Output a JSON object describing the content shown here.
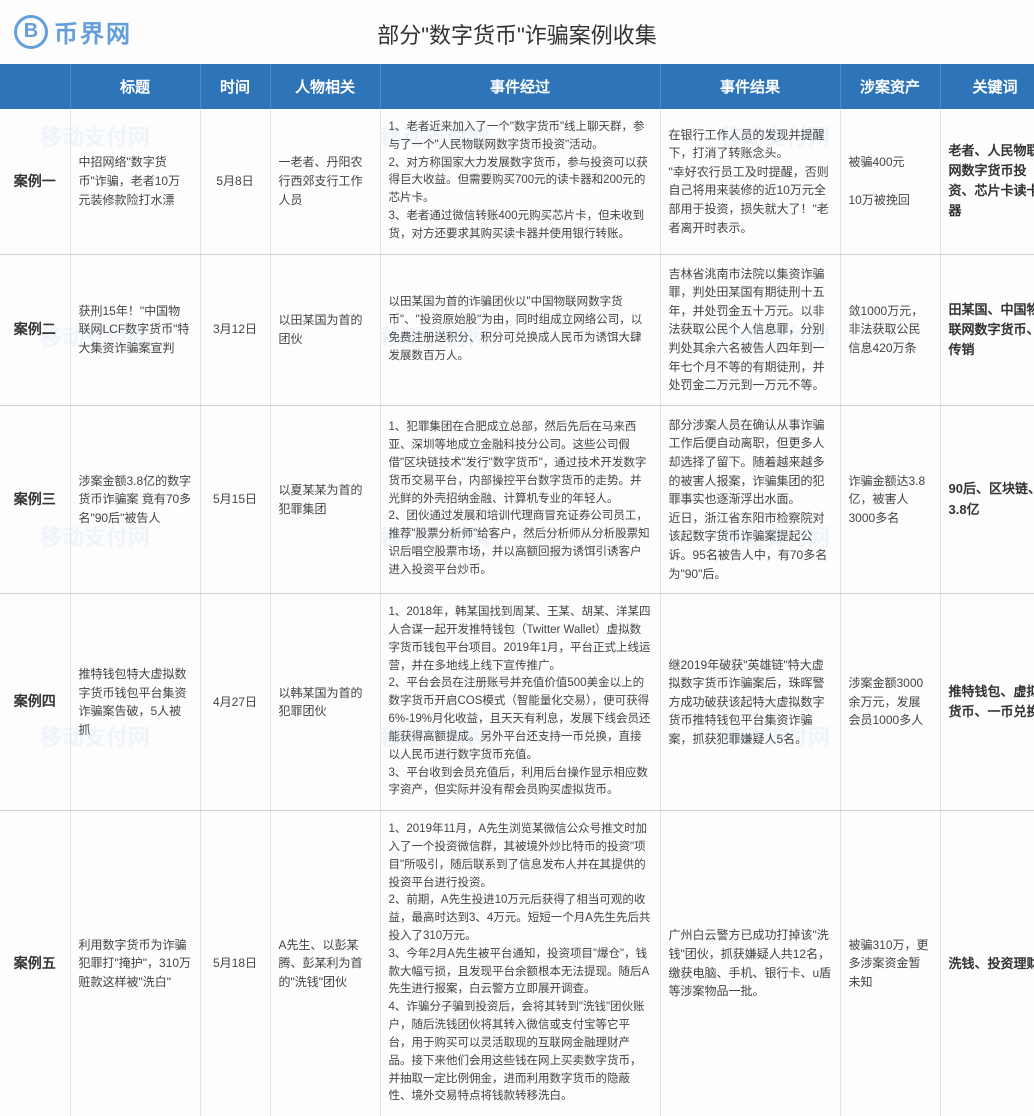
{
  "logo": {
    "glyph": "B",
    "text": "币界网"
  },
  "watermark_text": "移动支付网",
  "title": "部分\"数字货币\"诈骗案例收集",
  "columns": {
    "c0": "",
    "c1": "标题",
    "c2": "时间",
    "c3": "人物相关",
    "c4": "事件经过",
    "c5": "事件结果",
    "c6": "涉案资产",
    "c7": "关键词"
  },
  "rows": [
    {
      "case": "案例一",
      "title": "中招网络\"数字货币\"诈骗，老者10万元装修款险打水漂",
      "time": "5月8日",
      "person": "一老者、丹阳农行西郊支行工作人员",
      "process": "1、老者近来加入了一个\"数字货币\"线上聊天群，参与了一个\"人民物联网数字货币投资\"活动。\n2、对方称国家大力发展数字货币，参与投资可以获得巨大收益。但需要购买700元的读卡器和200元的芯片卡。\n3、老者通过微信转账400元购买芯片卡，但未收到货，对方还要求其购买读卡器并使用银行转账。",
      "result": "在银行工作人员的发现并提醒下，打消了转账念头。\n\"幸好农行员工及时提醒，否则自己将用来装修的近10万元全部用于投资，损失就大了！\"老者离开时表示。",
      "asset": "被骗400元\n\n10万被挽回",
      "keyword": "老者、人民物联网数字货币投资、芯片卡读卡器"
    },
    {
      "case": "案例二",
      "title": "获刑15年！\"中国物联网LCF数字货币\"特大集资诈骗案宣判",
      "time": "3月12日",
      "person": "以田某国为首的团伙",
      "process": "以田某国为首的诈骗团伙以\"中国物联网数字货币\"、\"投资原始股\"为由，同时组成立网络公司，以免费注册送积分、积分可兑换成人民币为诱饵大肆发展数百万人。",
      "result": "吉林省洮南市法院以集资诈骗罪，判处田某国有期徒刑十五年，并处罚金五十万元。以非法获取公民个人信息罪，分别判处其余六名被告人四年到一年七个月不等的有期徒刑，并处罚金二万元到一万元不等。",
      "asset": "敛1000万元，非法获取公民信息420万条",
      "keyword": "田某国、中国物联网数字货币、传销"
    },
    {
      "case": "案例三",
      "title": "涉案金额3.8亿的数字货币诈骗案 竟有70多名\"90后\"被告人",
      "time": "5月15日",
      "person": "以夏某某为首的犯罪集团",
      "process": "1、犯罪集团在合肥成立总部，然后先后在马来西亚、深圳等地成立金融科技分公司。这些公司假借\"区块链技术\"发行\"数字货币\"，通过技术开发数字货币交易平台，内部操控平台数字货币的走势。并光鲜的外壳招纳金融、计算机专业的年轻人。\n2、团伙通过发展和培训代理商冒充证券公司员工，推荐\"股票分析师\"给客户，然后分析师从分析股票知识后唱空股票市场，并以高额回报为诱饵引诱客户进入投资平台炒币。",
      "result": "部分涉案人员在确认从事诈骗工作后便自动离职，但更多人却选择了留下。随着越来越多的被害人报案，诈骗集团的犯罪事实也逐渐浮出水面。\n近日，浙江省东阳市检察院对该起数字货币诈骗案提起公诉。95名被告人中，有70多名为\"90\"后。",
      "asset": "诈骗金额达3.8亿，被害人3000多名",
      "keyword": "90后、区块链、3.8亿"
    },
    {
      "case": "案例四",
      "title": "推特钱包特大虚拟数字货币钱包平台集资诈骗案告破，5人被抓",
      "time": "4月27日",
      "person": "以韩某国为首的犯罪团伙",
      "process": "1、2018年，韩某国找到周某、王某、胡某、洋某四人合谋一起开发推特钱包（Twitter Wallet）虚拟数字货币钱包平台项目。2019年1月，平台正式上线运营，并在多地线上线下宣传推广。\n2、平台会员在注册账号并充值价值500美金以上的数字货币开启COS模式（智能量化交易），便可获得6%-19%月化收益，且天天有利息，发展下线会员还能获得高额提成。另外平台还支持一币兑换，直接以人民币进行数字货币充值。\n3、平台收到会员充值后，利用后台操作显示相应数字资产，但实际并没有帮会员购买虚拟货币。",
      "result": "继2019年破获\"英雄链\"特大虚拟数字货币诈骗案后，珠晖警方成功破获该起特大虚拟数字货币推特钱包平台集资诈骗案，抓获犯罪嫌疑人5名。",
      "asset": "涉案金额3000余万元，发展会员1000多人",
      "keyword": "推特钱包、虚拟货币、一币兑换"
    },
    {
      "case": "案例五",
      "title": "利用数字货币为诈骗犯罪打\"掩护\"，310万赃款这样被\"洗白\"",
      "time": "5月18日",
      "person": "A先生、以彭某腾、彭某利为首的\"洗钱\"团伙",
      "process": "1、2019年11月，A先生浏览某微信公众号推文时加入了一个投资微信群，其被境外炒比特币的投资\"项目\"所吸引，随后联系到了信息发布人并在其提供的投资平台进行投资。\n2、前期，A先生投进10万元后获得了相当可观的收益，最高时达到3、4万元。短短一个月A先生先后共投入了310万元。\n3、今年2月A先生被平台通知，投资项目\"爆仓\"，钱款大幅亏损，且发现平台余额根本无法提现。随后A先生进行报案，白云警方立即展开调查。\n4、诈骗分子骗到投资后，会将其转到\"洗钱\"团伙账户，随后洗钱团伙将其转入微信或支付宝等它平台，用于购买可以灵活取现的互联网金融理财产品。接下来他们会用这些钱在网上买卖数字货币，并抽取一定比例佣金，进而利用数字货币的隐蔽性、境外交易特点将钱款转移洗白。",
      "result": "广州白云警方已成功打掉该\"洗钱\"团伙，抓获嫌疑人共12名，缴获电脑、手机、银行卡、u盾等涉案物品一批。",
      "asset": "被骗310万，更多涉案资金暂未知",
      "keyword": "洗钱、投资理财"
    }
  ],
  "colors": {
    "header_bg": "#2d74b8",
    "header_text": "#ffffff",
    "body_text": "#444444",
    "border": "#d0d0d0",
    "logo": "#4a8fd6"
  }
}
